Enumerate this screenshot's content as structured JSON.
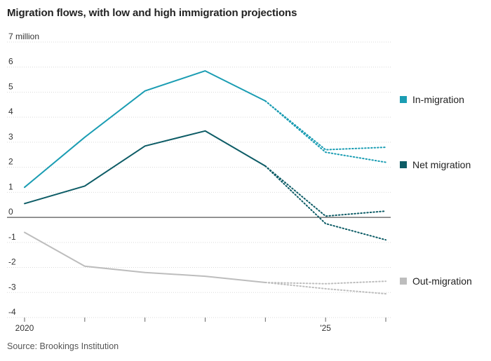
{
  "chart_data": {
    "type": "line",
    "title": "Migration flows, with low and high immigration projections",
    "source": "Source: Brookings Institution",
    "y_unit_label": "7 million",
    "ylim": [
      -4,
      7
    ],
    "yticks": [
      7,
      6,
      5,
      4,
      3,
      2,
      1,
      0,
      -1,
      -2,
      -3,
      -4
    ],
    "ytick_labels": [
      "7 million",
      "6",
      "5",
      "4",
      "3",
      "2",
      "1",
      "0",
      "-1",
      "-2",
      "-3",
      "-4"
    ],
    "xlim": [
      2020,
      2026
    ],
    "xticks": [
      2020,
      2021,
      2022,
      2023,
      2024,
      2025,
      2026
    ],
    "xtick_labels": {
      "2020": "2020",
      "2025": "'25"
    },
    "grid": true,
    "colors": {
      "In-migration": "#1b9db3",
      "Net migration": "#0d5c66",
      "Out-migration": "#bdbdbd",
      "zero_line": "#555555",
      "grid": "#d9d9d9"
    },
    "series": [
      {
        "name": "In-migration",
        "actual": {
          "x": [
            2020,
            2021,
            2022,
            2023,
            2024
          ],
          "y": [
            1.2,
            3.2,
            5.05,
            5.85,
            4.65
          ]
        },
        "projection_high": {
          "x": [
            2024,
            2025,
            2026
          ],
          "y": [
            4.65,
            2.7,
            2.8
          ]
        },
        "projection_low": {
          "x": [
            2024,
            2025,
            2026
          ],
          "y": [
            4.65,
            2.6,
            2.2
          ]
        }
      },
      {
        "name": "Net migration",
        "actual": {
          "x": [
            2020,
            2021,
            2022,
            2023,
            2024
          ],
          "y": [
            0.55,
            1.25,
            2.85,
            3.45,
            2.05
          ]
        },
        "projection_high": {
          "x": [
            2024,
            2025,
            2026
          ],
          "y": [
            2.05,
            0.05,
            0.25
          ]
        },
        "projection_low": {
          "x": [
            2024,
            2025,
            2026
          ],
          "y": [
            2.05,
            -0.25,
            -0.9
          ]
        }
      },
      {
        "name": "Out-migration",
        "actual": {
          "x": [
            2020,
            2021,
            2022,
            2023,
            2024
          ],
          "y": [
            -0.6,
            -1.95,
            -2.2,
            -2.35,
            -2.6
          ]
        },
        "projection_high": {
          "x": [
            2024,
            2025,
            2026
          ],
          "y": [
            -2.6,
            -2.65,
            -2.55
          ]
        },
        "projection_low": {
          "x": [
            2024,
            2025,
            2026
          ],
          "y": [
            -2.6,
            -2.85,
            -3.05
          ]
        }
      }
    ],
    "legend_placement": "right, beside each series"
  }
}
